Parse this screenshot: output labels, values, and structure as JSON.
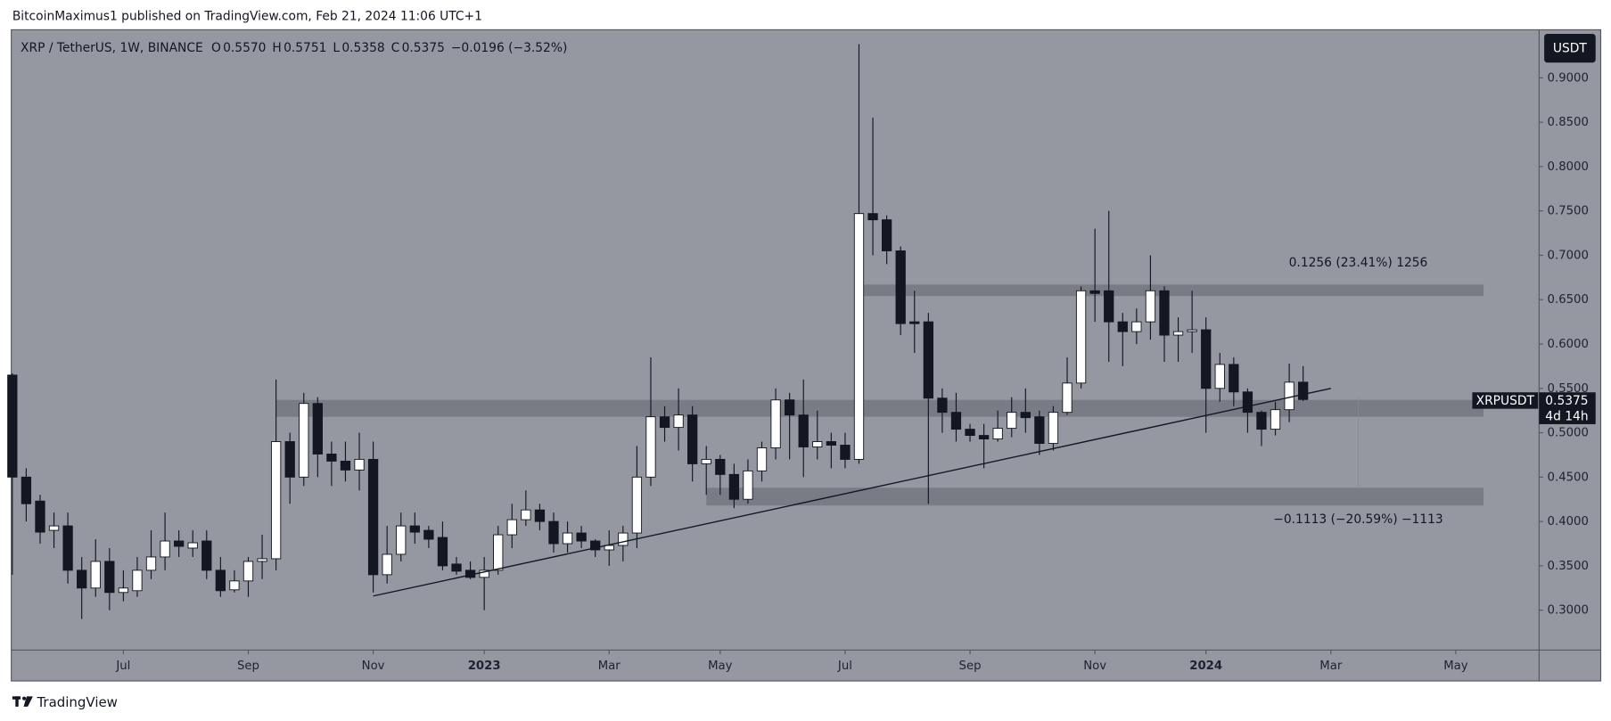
{
  "header": {
    "byline": "BitcoinMaximus1 published on TradingView.com, Feb 21, 2024 11:06 UTC+1"
  },
  "legend": {
    "symbol": "XRP / TetherUS, 1W, BINANCE",
    "items": [
      {
        "label": "O",
        "value": "0.5570"
      },
      {
        "label": "H",
        "value": "0.5751"
      },
      {
        "label": "L",
        "value": "0.5358"
      },
      {
        "label": "C",
        "value": "0.5375"
      }
    ],
    "change": "−0.0196 (−3.52%)"
  },
  "currency_button": "USDT",
  "price_tag": {
    "symbol": "XRPUSDT",
    "price": "0.5375",
    "countdown": "4d 14h"
  },
  "footer": {
    "brand": "TradingView"
  },
  "annotations": {
    "upper": "0.1256 (23.41%) 1256",
    "lower": "−0.1113 (−20.59%) −1113"
  },
  "chart_data": {
    "type": "candlestick",
    "open": [
      0.565,
      0.45,
      0.423,
      0.39,
      0.395,
      0.345,
      0.325,
      0.355,
      0.32,
      0.322,
      0.345,
      0.36,
      0.378,
      0.37,
      0.378,
      0.345,
      0.323,
      0.333,
      0.355,
      0.358,
      0.49,
      0.45,
      0.533,
      0.476,
      0.468,
      0.458,
      0.47,
      0.34,
      0.363,
      0.395,
      0.39,
      0.382,
      0.352,
      0.345,
      0.337,
      0.345,
      0.385,
      0.402,
      0.413,
      0.4,
      0.375,
      0.387,
      0.378,
      0.368,
      0.373,
      0.387,
      0.45,
      0.518,
      0.506,
      0.52,
      0.465,
      0.47,
      0.453,
      0.425,
      0.457,
      0.483,
      0.537,
      0.52,
      0.484,
      0.49,
      0.486,
      0.47,
      0.747,
      0.74,
      0.705,
      0.625,
      0.625,
      0.539,
      0.523,
      0.504,
      0.497,
      0.493,
      0.505,
      0.523,
      0.518,
      0.488,
      0.523,
      0.556,
      0.66,
      0.66,
      0.625,
      0.614,
      0.625,
      0.66,
      0.61,
      0.614,
      0.616,
      0.55,
      0.577,
      0.546,
      0.523,
      0.504,
      0.526,
      0.557
    ],
    "high": [
      0.567,
      0.46,
      0.43,
      0.41,
      0.41,
      0.36,
      0.38,
      0.37,
      0.345,
      0.36,
      0.39,
      0.41,
      0.39,
      0.39,
      0.39,
      0.36,
      0.345,
      0.36,
      0.385,
      0.56,
      0.5,
      0.545,
      0.54,
      0.49,
      0.49,
      0.5,
      0.49,
      0.395,
      0.41,
      0.41,
      0.395,
      0.4,
      0.36,
      0.355,
      0.36,
      0.395,
      0.42,
      0.435,
      0.42,
      0.41,
      0.4,
      0.395,
      0.38,
      0.39,
      0.395,
      0.485,
      0.585,
      0.53,
      0.55,
      0.53,
      0.485,
      0.475,
      0.465,
      0.47,
      0.49,
      0.55,
      0.545,
      0.56,
      0.525,
      0.5,
      0.5,
      0.938,
      0.855,
      0.745,
      0.71,
      0.66,
      0.635,
      0.55,
      0.545,
      0.51,
      0.51,
      0.525,
      0.54,
      0.55,
      0.525,
      0.53,
      0.585,
      0.665,
      0.73,
      0.75,
      0.635,
      0.64,
      0.7,
      0.665,
      0.63,
      0.66,
      0.63,
      0.59,
      0.585,
      0.55,
      0.525,
      0.535,
      0.578,
      0.5751
    ],
    "low": [
      0.34,
      0.4,
      0.375,
      0.37,
      0.33,
      0.29,
      0.315,
      0.3,
      0.31,
      0.315,
      0.335,
      0.345,
      0.36,
      0.36,
      0.335,
      0.315,
      0.32,
      0.315,
      0.335,
      0.345,
      0.42,
      0.44,
      0.45,
      0.44,
      0.445,
      0.435,
      0.32,
      0.33,
      0.355,
      0.375,
      0.37,
      0.345,
      0.34,
      0.335,
      0.3,
      0.34,
      0.37,
      0.395,
      0.39,
      0.365,
      0.365,
      0.37,
      0.36,
      0.35,
      0.355,
      0.37,
      0.44,
      0.49,
      0.48,
      0.445,
      0.43,
      0.43,
      0.415,
      0.42,
      0.445,
      0.47,
      0.47,
      0.45,
      0.47,
      0.46,
      0.46,
      0.465,
      0.7,
      0.69,
      0.61,
      0.59,
      0.42,
      0.5,
      0.49,
      0.49,
      0.46,
      0.49,
      0.495,
      0.5,
      0.475,
      0.48,
      0.52,
      0.55,
      0.625,
      0.58,
      0.575,
      0.6,
      0.605,
      0.58,
      0.58,
      0.59,
      0.5,
      0.535,
      0.53,
      0.5,
      0.485,
      0.497,
      0.512,
      0.5358
    ],
    "close": [
      0.45,
      0.42,
      0.388,
      0.395,
      0.345,
      0.325,
      0.355,
      0.32,
      0.325,
      0.345,
      0.36,
      0.378,
      0.372,
      0.376,
      0.345,
      0.322,
      0.333,
      0.355,
      0.358,
      0.49,
      0.45,
      0.533,
      0.476,
      0.468,
      0.458,
      0.47,
      0.34,
      0.363,
      0.395,
      0.388,
      0.38,
      0.35,
      0.344,
      0.337,
      0.345,
      0.385,
      0.402,
      0.413,
      0.4,
      0.375,
      0.387,
      0.378,
      0.368,
      0.373,
      0.387,
      0.45,
      0.518,
      0.506,
      0.52,
      0.465,
      0.47,
      0.453,
      0.425,
      0.457,
      0.483,
      0.537,
      0.52,
      0.484,
      0.49,
      0.486,
      0.47,
      0.747,
      0.74,
      0.705,
      0.623,
      0.623,
      0.539,
      0.523,
      0.504,
      0.497,
      0.493,
      0.505,
      0.523,
      0.517,
      0.488,
      0.523,
      0.556,
      0.66,
      0.657,
      0.625,
      0.614,
      0.625,
      0.66,
      0.61,
      0.614,
      0.616,
      0.55,
      0.577,
      0.546,
      0.523,
      0.504,
      0.526,
      0.557,
      0.5375
    ],
    "up_color": "#ffffff",
    "down_color": "#131722",
    "xlim": [
      0,
      110
    ],
    "xticks": [
      {
        "value": 8,
        "label": "Jul"
      },
      {
        "value": 17,
        "label": "Sep"
      },
      {
        "value": 26,
        "label": "Nov"
      },
      {
        "value": 34,
        "label": "2023"
      },
      {
        "value": 43,
        "label": "Mar"
      },
      {
        "value": 51,
        "label": "May"
      },
      {
        "value": 60,
        "label": "Jul"
      },
      {
        "value": 69,
        "label": "Sep"
      },
      {
        "value": 78,
        "label": "Nov"
      },
      {
        "value": 86,
        "label": "2024"
      },
      {
        "value": 95,
        "label": "Mar"
      },
      {
        "value": 104,
        "label": "May"
      }
    ],
    "ylim": [
      0.255,
      0.953
    ],
    "yticks": [
      {
        "value": 0.3,
        "label": "0.3000"
      },
      {
        "value": 0.35,
        "label": "0.3500"
      },
      {
        "value": 0.4,
        "label": "0.4000"
      },
      {
        "value": 0.45,
        "label": "0.4500"
      },
      {
        "value": 0.5,
        "label": "0.5000"
      },
      {
        "value": 0.55,
        "label": "0.5500"
      },
      {
        "value": 0.6,
        "label": "0.6000"
      },
      {
        "value": 0.65,
        "label": "0.6500"
      },
      {
        "value": 0.7,
        "label": "0.7000"
      },
      {
        "value": 0.75,
        "label": "0.7500"
      },
      {
        "value": 0.8,
        "label": "0.8000"
      },
      {
        "value": 0.85,
        "label": "0.8500"
      },
      {
        "value": 0.9,
        "label": "0.9000"
      }
    ],
    "zones": [
      {
        "high": 0.667,
        "low": 0.654,
        "start": 61.3,
        "end": 106
      },
      {
        "high": 0.537,
        "low": 0.518,
        "start": 19,
        "end": 106
      },
      {
        "high": 0.438,
        "low": 0.418,
        "start": 50,
        "end": 106
      }
    ],
    "trendline": {
      "start": [
        26,
        0.316
      ],
      "end": [
        95,
        0.55
      ]
    }
  }
}
